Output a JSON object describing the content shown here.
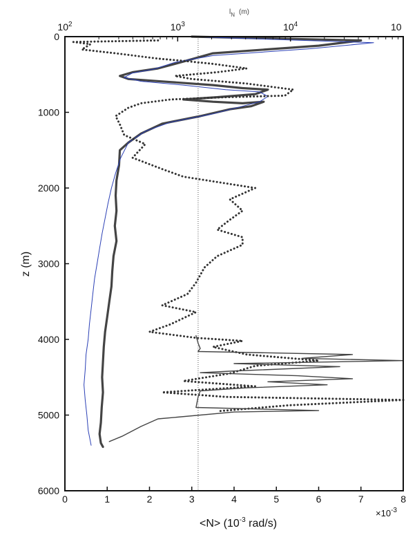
{
  "chart_data": {
    "type": "line",
    "title": "",
    "xlabel": "<N> (10",
    "xlabel_exp": "-3",
    "xlabel_unit": " rad/s)",
    "x_multiplier_base": "×10",
    "x_multiplier_exp": "-3",
    "ylabel": "z (m)",
    "xlim": [
      0,
      8
    ],
    "ylim": [
      6000,
      0
    ],
    "x_ticks": [
      "0",
      "1",
      "2",
      "3",
      "4",
      "5",
      "6",
      "7",
      "8"
    ],
    "y_ticks": [
      "0",
      "1000",
      "2000",
      "3000",
      "4000",
      "5000",
      "6000"
    ],
    "top_axis": {
      "label_base": "l",
      "label_sub": "N",
      "label_unit": "(m)",
      "scale": "log",
      "range": [
        100,
        100000
      ],
      "ticks": [
        {
          "base": "10",
          "exp": "2"
        },
        {
          "base": "10",
          "exp": "3"
        },
        {
          "base": "10",
          "exp": "4"
        },
        {
          "base": "10",
          "exp": ""
        }
      ]
    },
    "reference_line": {
      "x": 3.15,
      "style": "dotted",
      "color": "#555555"
    },
    "series": [
      {
        "style": "thick-solid",
        "color": "#444444",
        "points": [
          [
            3.0,
            0
          ],
          [
            7.0,
            50
          ],
          [
            6.0,
            120
          ],
          [
            3.5,
            220
          ],
          [
            2.8,
            330
          ],
          [
            2.2,
            420
          ],
          [
            1.6,
            470
          ],
          [
            1.3,
            520
          ],
          [
            1.5,
            560
          ],
          [
            2.5,
            600
          ],
          [
            3.5,
            640
          ],
          [
            4.2,
            680
          ],
          [
            4.8,
            700
          ],
          [
            4.5,
            760
          ],
          [
            3.6,
            800
          ],
          [
            2.8,
            830
          ],
          [
            3.5,
            860
          ],
          [
            4.2,
            880
          ],
          [
            4.7,
            860
          ],
          [
            4.4,
            920
          ],
          [
            3.9,
            960
          ],
          [
            3.2,
            1050
          ],
          [
            2.3,
            1150
          ],
          [
            1.8,
            1280
          ],
          [
            1.5,
            1400
          ],
          [
            1.3,
            1500
          ],
          [
            1.28,
            1700
          ],
          [
            1.22,
            1900
          ],
          [
            1.2,
            2100
          ],
          [
            1.22,
            2300
          ],
          [
            1.18,
            2500
          ],
          [
            1.22,
            2700
          ],
          [
            1.15,
            2900
          ],
          [
            1.12,
            3100
          ],
          [
            1.1,
            3300
          ],
          [
            1.05,
            3500
          ],
          [
            1.0,
            3700
          ],
          [
            0.95,
            3900
          ],
          [
            0.92,
            4100
          ],
          [
            0.9,
            4300
          ],
          [
            0.88,
            4500
          ],
          [
            0.9,
            4700
          ],
          [
            0.87,
            4900
          ],
          [
            0.85,
            5100
          ],
          [
            0.82,
            5250
          ],
          [
            0.85,
            5370
          ],
          [
            0.9,
            5420
          ]
        ]
      },
      {
        "style": "thin-blue",
        "color": "#2a3fb5",
        "points": [
          [
            3.0,
            0
          ],
          [
            7.3,
            80
          ],
          [
            5.8,
            160
          ],
          [
            3.5,
            250
          ],
          [
            2.6,
            340
          ],
          [
            2.1,
            430
          ],
          [
            1.6,
            480
          ],
          [
            1.4,
            540
          ],
          [
            1.8,
            590
          ],
          [
            2.8,
            640
          ],
          [
            3.8,
            700
          ],
          [
            4.6,
            730
          ],
          [
            4.8,
            790
          ],
          [
            4.6,
            860
          ],
          [
            4.2,
            920
          ],
          [
            3.5,
            1020
          ],
          [
            2.5,
            1130
          ],
          [
            1.9,
            1250
          ],
          [
            1.5,
            1400
          ],
          [
            1.32,
            1600
          ],
          [
            1.2,
            1800
          ],
          [
            1.1,
            2000
          ],
          [
            1.02,
            2200
          ],
          [
            0.95,
            2400
          ],
          [
            0.88,
            2600
          ],
          [
            0.82,
            2800
          ],
          [
            0.76,
            3000
          ],
          [
            0.7,
            3200
          ],
          [
            0.66,
            3400
          ],
          [
            0.62,
            3600
          ],
          [
            0.58,
            3800
          ],
          [
            0.55,
            4000
          ],
          [
            0.5,
            4200
          ],
          [
            0.48,
            4400
          ],
          [
            0.45,
            4600
          ],
          [
            0.48,
            4800
          ],
          [
            0.52,
            5000
          ],
          [
            0.55,
            5200
          ],
          [
            0.62,
            5400
          ]
        ]
      },
      {
        "style": "dotted",
        "color": "#333333",
        "points": [
          [
            2.2,
            50
          ],
          [
            0.2,
            70
          ],
          [
            0.6,
            100
          ],
          [
            0.4,
            170
          ],
          [
            1.2,
            220
          ],
          [
            2.2,
            290
          ],
          [
            2.8,
            320
          ],
          [
            3.5,
            360
          ],
          [
            4.3,
            420
          ],
          [
            3.6,
            470
          ],
          [
            2.6,
            520
          ],
          [
            3.0,
            560
          ],
          [
            4.3,
            620
          ],
          [
            5.4,
            700
          ],
          [
            5.2,
            780
          ],
          [
            3.8,
            800
          ],
          [
            2.5,
            830
          ],
          [
            1.8,
            880
          ],
          [
            1.5,
            940
          ],
          [
            1.2,
            1050
          ],
          [
            1.3,
            1160
          ],
          [
            1.4,
            1300
          ],
          [
            1.9,
            1420
          ],
          [
            1.6,
            1600
          ],
          [
            2.3,
            1750
          ],
          [
            2.8,
            1850
          ],
          [
            4.5,
            2000
          ],
          [
            3.9,
            2150
          ],
          [
            4.2,
            2300
          ],
          [
            3.9,
            2420
          ],
          [
            3.6,
            2550
          ],
          [
            4.2,
            2650
          ],
          [
            4.2,
            2750
          ],
          [
            3.6,
            2900
          ],
          [
            3.3,
            3050
          ],
          [
            3.1,
            3250
          ],
          [
            2.9,
            3400
          ],
          [
            2.3,
            3550
          ],
          [
            3.1,
            3640
          ],
          [
            2.5,
            3800
          ],
          [
            2.0,
            3900
          ],
          [
            3.1,
            3980
          ],
          [
            4.2,
            4020
          ],
          [
            3.5,
            4100
          ],
          [
            4.3,
            4200
          ],
          [
            6.0,
            4280
          ],
          [
            4.5,
            4350
          ],
          [
            3.9,
            4450
          ],
          [
            2.8,
            4550
          ],
          [
            4.5,
            4620
          ],
          [
            2.3,
            4700
          ],
          [
            3.8,
            4760
          ],
          [
            8.0,
            4800
          ],
          [
            5.3,
            4870
          ],
          [
            3.6,
            4950
          ]
        ]
      },
      {
        "style": "thin-solid",
        "color": "#444444",
        "points": [
          [
            3.1,
            3950
          ],
          [
            3.15,
            4050
          ],
          [
            3.2,
            4120
          ],
          [
            3.15,
            4160
          ],
          [
            6.8,
            4200
          ],
          [
            5.6,
            4250
          ],
          [
            8.0,
            4280
          ],
          [
            4.0,
            4320
          ],
          [
            6.5,
            4360
          ],
          [
            3.9,
            4420
          ],
          [
            3.2,
            4440
          ],
          [
            5.5,
            4480
          ],
          [
            6.8,
            4520
          ],
          [
            4.8,
            4560
          ],
          [
            6.2,
            4600
          ],
          [
            4.3,
            4640
          ],
          [
            3.2,
            4680
          ],
          [
            3.15,
            4760
          ],
          [
            3.1,
            4900
          ],
          [
            6.0,
            4940
          ],
          [
            4.0,
            4960
          ],
          [
            2.2,
            5050
          ],
          [
            1.8,
            5150
          ],
          [
            1.35,
            5280
          ],
          [
            1.05,
            5350
          ]
        ]
      }
    ]
  }
}
